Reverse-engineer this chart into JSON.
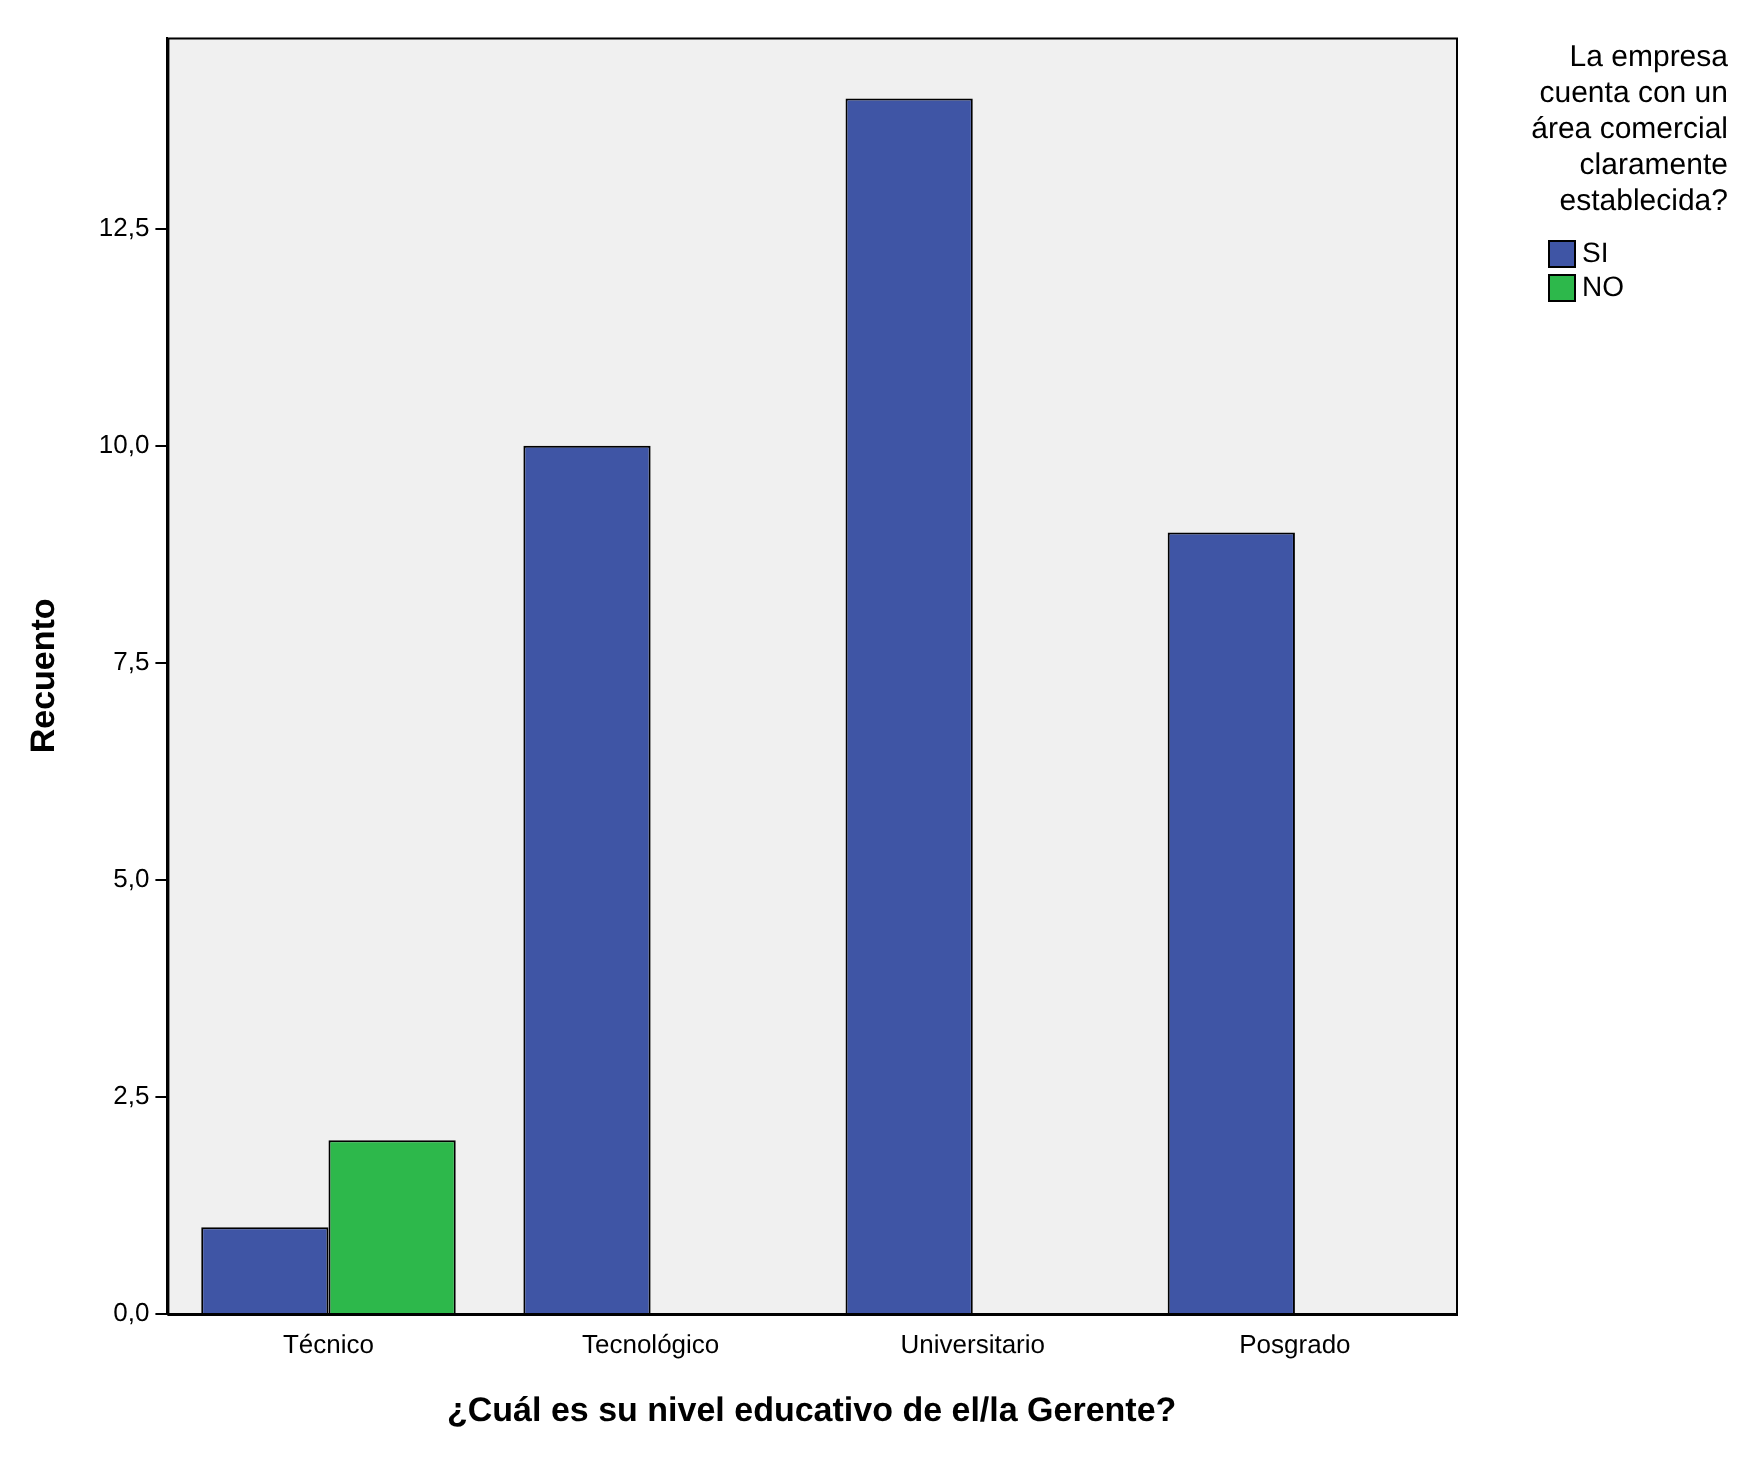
{
  "chart_data": {
    "type": "bar",
    "xlabel": "¿Cuál es su nivel educativo de el/la Gerente?",
    "ylabel": "Recuento",
    "legend_title": "La empresa cuenta con un área comercial claramente establecida?",
    "legend": "right",
    "grid": false,
    "categories": [
      "Técnico",
      "Tecnológico",
      "Universitario",
      "Posgrado"
    ],
    "series": [
      {
        "name": "SI",
        "color": "#3f55a5",
        "values": [
          1,
          10,
          14,
          9
        ]
      },
      {
        "name": "NO",
        "color": "#2db84b",
        "values": [
          2,
          null,
          null,
          null
        ]
      }
    ],
    "ylim": [
      0,
      14.7
    ],
    "yticks": [
      {
        "value": 0,
        "label": "0,0"
      },
      {
        "value": 2.5,
        "label": "2,5"
      },
      {
        "value": 5,
        "label": "5,0"
      },
      {
        "value": 7.5,
        "label": "7,5"
      },
      {
        "value": 10,
        "label": "10,0"
      },
      {
        "value": 12.5,
        "label": "12,5"
      }
    ]
  }
}
